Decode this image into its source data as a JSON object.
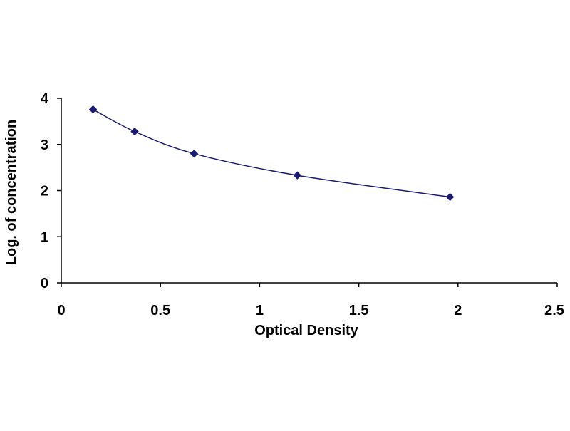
{
  "chart_data": {
    "type": "scatter",
    "title": "",
    "xlabel": "Optical Density",
    "ylabel": "Log. of concentration",
    "xlim": [
      0,
      2.5
    ],
    "ylim": [
      0,
      4
    ],
    "xticks": [
      0,
      0.5,
      1,
      1.5,
      2,
      2.5
    ],
    "yticks": [
      0,
      1,
      2,
      3,
      4
    ],
    "xtick_labels": [
      "0",
      "0.5",
      "1",
      "1.5",
      "2",
      "2.5"
    ],
    "ytick_labels": [
      "0",
      "1",
      "2",
      "3",
      "4"
    ],
    "grid": false,
    "legend": "none",
    "series": [
      {
        "x": [
          0.16,
          0.37,
          0.67,
          1.19,
          1.96
        ],
        "y": [
          3.76,
          3.28,
          2.8,
          2.33,
          1.86
        ],
        "connect": "smooth-line",
        "marker": "diamond",
        "color": "#1a1a6e"
      }
    ]
  }
}
